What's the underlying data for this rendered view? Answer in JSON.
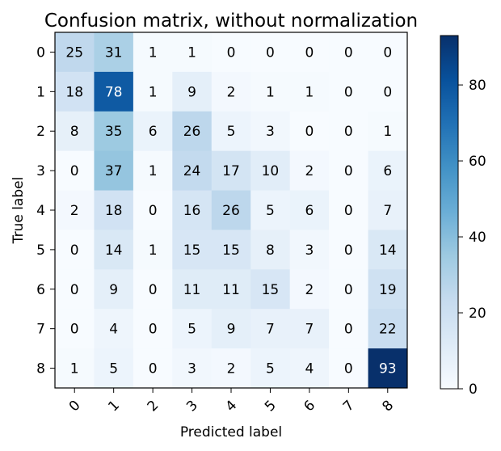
{
  "chart_data": {
    "type": "heatmap",
    "title": "Confusion matrix, without normalization",
    "xlabel": "Predicted label",
    "ylabel": "True label",
    "x_categories": [
      "0",
      "1",
      "2",
      "3",
      "4",
      "5",
      "6",
      "7",
      "8"
    ],
    "y_categories": [
      "0",
      "1",
      "2",
      "3",
      "4",
      "5",
      "6",
      "7",
      "8"
    ],
    "matrix": [
      [
        25,
        31,
        1,
        1,
        0,
        0,
        0,
        0,
        0
      ],
      [
        18,
        78,
        1,
        9,
        2,
        1,
        1,
        0,
        0
      ],
      [
        8,
        35,
        6,
        26,
        5,
        3,
        0,
        0,
        1
      ],
      [
        0,
        37,
        1,
        24,
        17,
        10,
        2,
        0,
        6
      ],
      [
        2,
        18,
        0,
        16,
        26,
        5,
        6,
        0,
        7
      ],
      [
        0,
        14,
        1,
        15,
        15,
        8,
        3,
        0,
        14
      ],
      [
        0,
        9,
        0,
        11,
        11,
        15,
        2,
        0,
        19
      ],
      [
        0,
        4,
        0,
        5,
        9,
        7,
        7,
        0,
        22
      ],
      [
        1,
        5,
        0,
        3,
        2,
        5,
        4,
        0,
        93
      ]
    ],
    "colormap": "Blues",
    "color_min": "#f7fbff",
    "color_max": "#08306b",
    "color_range": [
      0,
      93
    ],
    "colorbar_ticks": [
      "0",
      "20",
      "40",
      "60",
      "80"
    ],
    "colorbar_tick_values": [
      0,
      20,
      40,
      60,
      80
    ],
    "legend": "colorbar-right",
    "grid": false
  }
}
